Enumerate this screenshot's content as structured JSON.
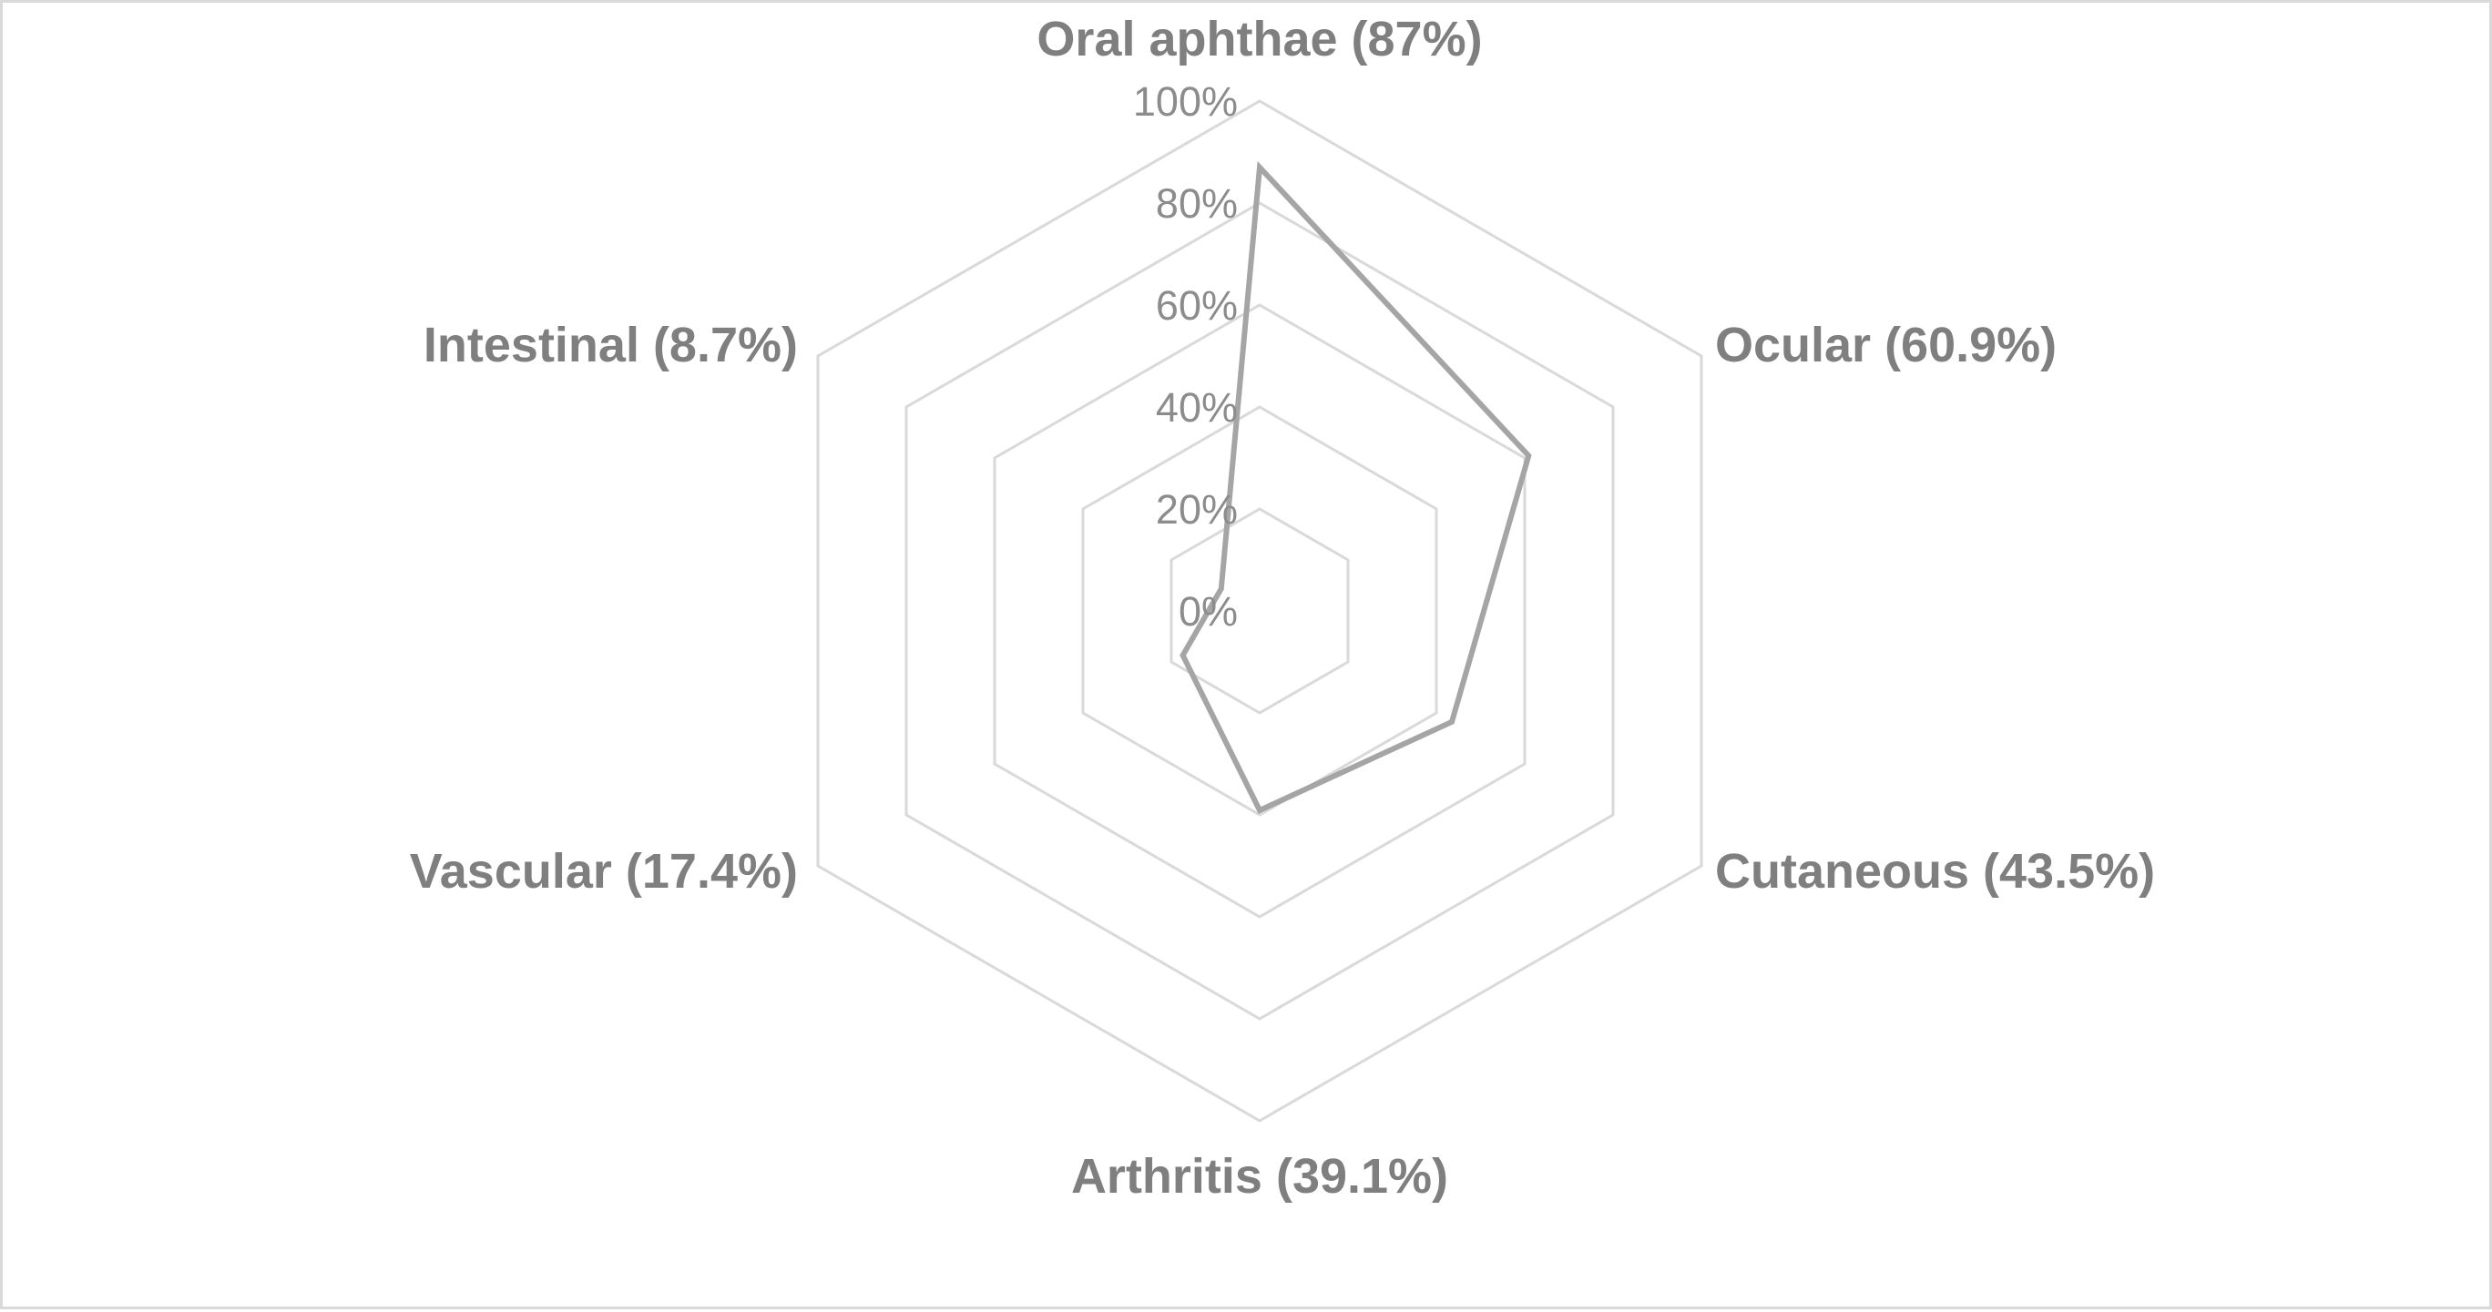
{
  "chart_data": {
    "type": "radar",
    "categories": [
      "Oral aphthae (87%)",
      "Ocular (60.9%)",
      "Cutaneous (43.5%)",
      "Arthritis (39.1%)",
      "Vascular (17.4%)",
      "Intestinal (8.7%)"
    ],
    "series": [
      {
        "values": [
          87,
          60.9,
          43.5,
          39.1,
          17.4,
          8.7
        ]
      }
    ],
    "axis": {
      "min": 0,
      "max": 100,
      "ticks": [
        "0%",
        "20%",
        "40%",
        "60%",
        "80%",
        "100%"
      ],
      "tick_values": [
        0,
        20,
        40,
        60,
        80,
        100
      ]
    },
    "grid": true,
    "legend": "none",
    "colors": {
      "series_line": "#a5a5a5",
      "grid": "#d9d9d9",
      "category_text": "#7f7f7f",
      "tick_text": "#8c8c8c",
      "frame": "#d9d9d9"
    }
  }
}
